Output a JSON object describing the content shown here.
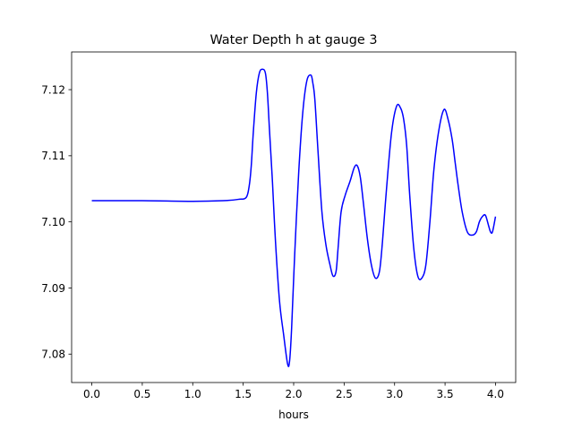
{
  "chart_data": {
    "type": "line",
    "title": "Water Depth h at gauge 3",
    "xlabel": "hours",
    "ylabel": "",
    "xlim": [
      -0.2,
      4.2
    ],
    "ylim": [
      7.0757,
      7.1257
    ],
    "xticks": [
      0.0,
      0.5,
      1.0,
      1.5,
      2.0,
      2.5,
      3.0,
      3.5,
      4.0
    ],
    "xtick_labels": [
      "0.0",
      "0.5",
      "1.0",
      "1.5",
      "2.0",
      "2.5",
      "3.0",
      "3.5",
      "4.0"
    ],
    "yticks": [
      7.08,
      7.09,
      7.1,
      7.11,
      7.12
    ],
    "ytick_labels": [
      "7.08",
      "7.09",
      "7.10",
      "7.11",
      "7.12"
    ],
    "grid": false,
    "series": [
      {
        "color": "#0000ff",
        "x": [
          0.0,
          0.5,
          1.0,
          1.3,
          1.45,
          1.53,
          1.56,
          1.58,
          1.6,
          1.63,
          1.66,
          1.69,
          1.72,
          1.74,
          1.76,
          1.79,
          1.82,
          1.86,
          1.9,
          1.94,
          1.96,
          1.98,
          2.01,
          2.05,
          2.09,
          2.13,
          2.17,
          2.19,
          2.21,
          2.24,
          2.28,
          2.32,
          2.36,
          2.39,
          2.42,
          2.44,
          2.47,
          2.51,
          2.56,
          2.6,
          2.63,
          2.66,
          2.69,
          2.73,
          2.77,
          2.81,
          2.85,
          2.88,
          2.92,
          2.97,
          3.02,
          3.06,
          3.09,
          3.12,
          3.15,
          3.19,
          3.23,
          3.27,
          3.31,
          3.35,
          3.39,
          3.44,
          3.49,
          3.53,
          3.57,
          3.6,
          3.63,
          3.67,
          3.72,
          3.77,
          3.81,
          3.84,
          3.87,
          3.9,
          3.93,
          3.95,
          3.97,
          4.0
        ],
        "y": [
          7.1032,
          7.1032,
          7.1031,
          7.1032,
          7.1034,
          7.1037,
          7.1055,
          7.1085,
          7.1135,
          7.1195,
          7.1225,
          7.1231,
          7.1225,
          7.1195,
          7.114,
          7.106,
          7.097,
          7.088,
          7.083,
          7.0785,
          7.079,
          7.084,
          7.095,
          7.1075,
          7.1165,
          7.1213,
          7.1222,
          7.121,
          7.1185,
          7.111,
          7.1015,
          7.0965,
          7.0935,
          7.0918,
          7.0925,
          7.096,
          7.1015,
          7.104,
          7.1062,
          7.1082,
          7.1085,
          7.1068,
          7.103,
          7.0975,
          7.0935,
          7.0915,
          7.0925,
          7.097,
          7.105,
          7.1135,
          7.1175,
          7.1172,
          7.1155,
          7.1115,
          7.104,
          7.096,
          7.0918,
          7.0915,
          7.0935,
          7.1,
          7.108,
          7.114,
          7.117,
          7.1155,
          7.1125,
          7.109,
          7.1055,
          7.1015,
          7.0985,
          7.098,
          7.0985,
          7.1,
          7.1008,
          7.101,
          7.0995,
          7.0985,
          7.0985,
          7.1008
        ]
      }
    ]
  }
}
